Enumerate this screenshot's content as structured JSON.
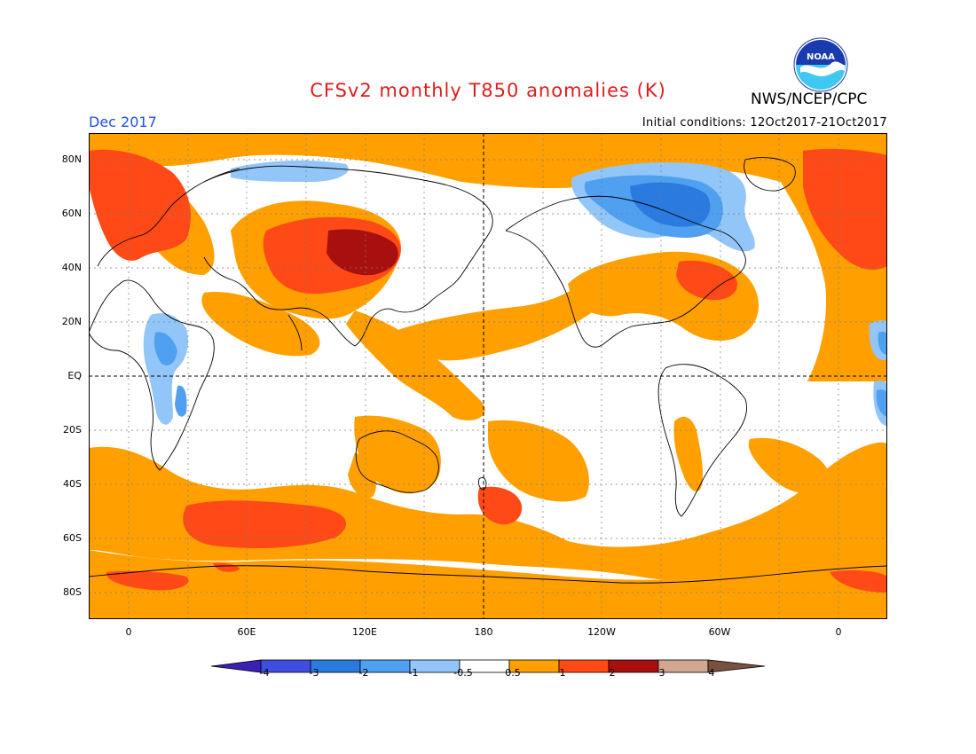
{
  "header": {
    "title": "CFSv2 monthly T850 anomalies (K)",
    "month": "Dec 2017",
    "initial_conditions": "Initial conditions: 12Oct2017-21Oct2017",
    "agency": "NWS/NCEP/CPC",
    "logo_text": "NOAA"
  },
  "map": {
    "projection": "equirectangular, centered 180",
    "lat_labels": [
      "80N",
      "60N",
      "40N",
      "20N",
      "EQ",
      "20S",
      "40S",
      "60S",
      "80S"
    ],
    "lon_labels": [
      "0",
      "60E",
      "120E",
      "180",
      "120W",
      "60W",
      "0"
    ]
  },
  "legend": {
    "labels": [
      "-4",
      "-3",
      "-2",
      "-1",
      "-0.5",
      "0.5",
      "1",
      "2",
      "3",
      "4"
    ],
    "colors": [
      "#3c1fb4",
      "#3f4ee0",
      "#2a7ae0",
      "#4fa0f0",
      "#92c6f8",
      "#ffffff",
      "#ffa000",
      "#ff4a18",
      "#a81010",
      "#d2a690",
      "#7a5040"
    ]
  },
  "colors": {
    "warm1": "#ffa000",
    "warm2": "#ff4a18",
    "warm3": "#a81010",
    "cool1": "#92c6f8",
    "cool2": "#4fa0f0",
    "cool3": "#2a7ae0",
    "title": "#e01c1c",
    "month": "#1f4fe0"
  }
}
